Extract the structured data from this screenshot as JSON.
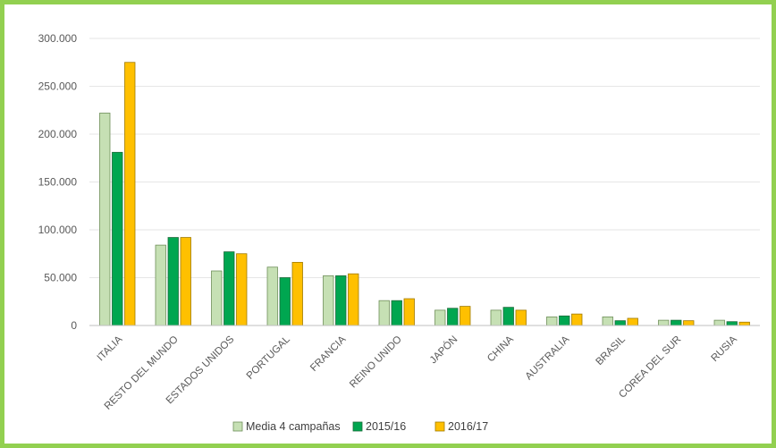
{
  "chart_data": {
    "type": "bar",
    "categories": [
      "ITALIA",
      "RESTO DEL MUNDO",
      "ESTADOS UNIDOS",
      "PORTUGAL",
      "FRANCIA",
      "REINO UNIDO",
      "JAPÓN",
      "CHINA",
      "AUSTRALIA",
      "BRASIL",
      "COREA DEL SUR",
      "RUSIA"
    ],
    "series": [
      {
        "name": "Media 4 campañas",
        "color": "#c6e0b4",
        "stroke": "#6f8f5a",
        "values": [
          222000,
          84000,
          57000,
          61000,
          52000,
          26000,
          16000,
          16000,
          9000,
          9000,
          5500,
          5500
        ]
      },
      {
        "name": "2015/16",
        "color": "#00a650",
        "stroke": "#1d6b3a",
        "values": [
          181000,
          92000,
          77000,
          50000,
          52000,
          26000,
          18000,
          19000,
          10000,
          5000,
          5500,
          4000
        ]
      },
      {
        "name": "2016/17",
        "color": "#ffc000",
        "stroke": "#a07a00",
        "values": [
          275000,
          92000,
          75000,
          66000,
          54000,
          28000,
          20000,
          16000,
          12000,
          7500,
          5000,
          3500
        ]
      }
    ],
    "yticks": [
      "0",
      "50.000",
      "100.000",
      "150.000",
      "200.000",
      "250.000",
      "300.000"
    ],
    "ylim": [
      0,
      300000
    ],
    "grid": true,
    "legend_position": "bottom"
  }
}
